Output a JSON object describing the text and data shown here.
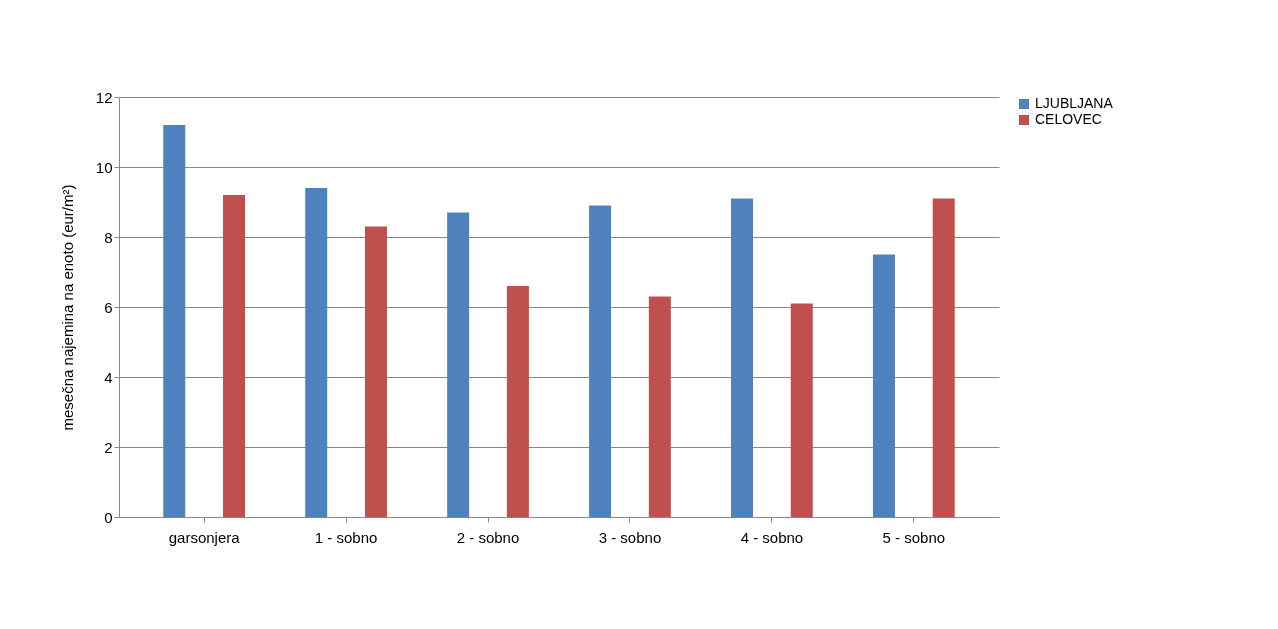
{
  "chart_data": {
    "type": "bar",
    "ylabel": "mesečna najemina na enoto (eur/m²)",
    "categories": [
      "garsonjera",
      "1 - sobno",
      "2 - sobno",
      "3 - sobno",
      "4 - sobno",
      "5 - sobno"
    ],
    "series": [
      {
        "name": "LJUBLJANA",
        "color": "#4f81bd",
        "values": [
          11.2,
          9.4,
          8.7,
          8.9,
          9.1,
          7.5
        ]
      },
      {
        "name": "CELOVEC",
        "color": "#c0504d",
        "values": [
          9.2,
          8.3,
          6.6,
          6.3,
          6.1,
          9.1
        ]
      }
    ],
    "ylim": [
      0,
      12
    ],
    "yticks": [
      0,
      2,
      4,
      6,
      8,
      10,
      12
    ],
    "grid": "y",
    "legend": "right"
  }
}
